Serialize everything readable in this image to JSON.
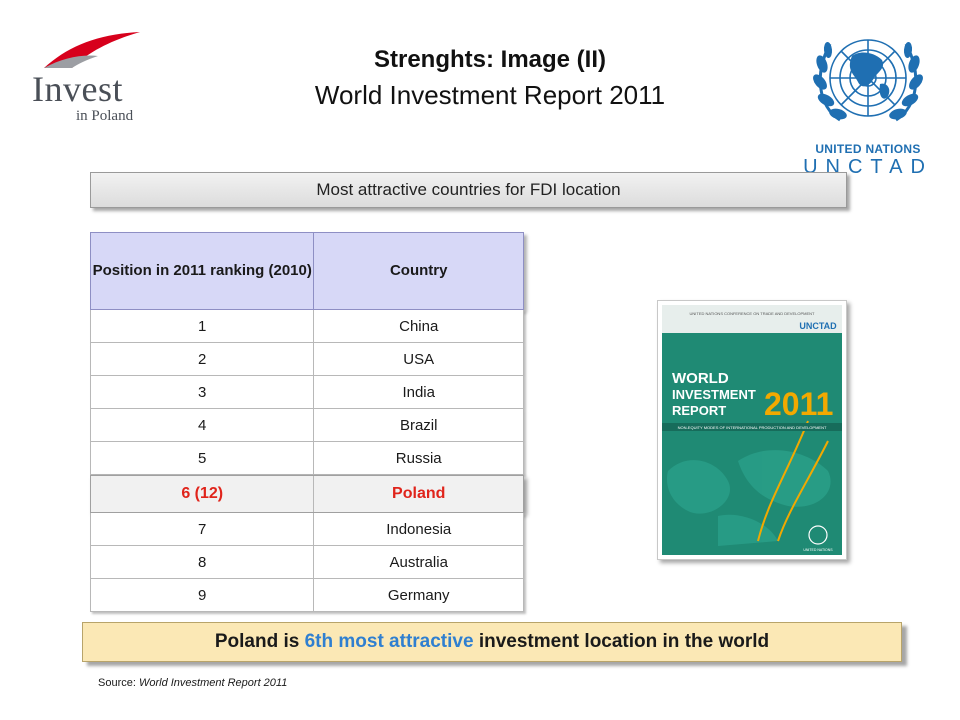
{
  "title": {
    "main": "Strenghts: Image (II)",
    "sub": "World Investment Report 2011"
  },
  "logos": {
    "invest_in_poland": {
      "word1": "Invest",
      "word2": "in Poland",
      "icon": "invest-in-poland-logo",
      "colors": [
        "#d7001c",
        "#4a4f57"
      ]
    },
    "unctad": {
      "line1": "UNITED NATIONS",
      "line2": "UNCTAD",
      "icon": "un-emblem",
      "color": "#1f6fb2"
    }
  },
  "banner": {
    "text": "Most attractive countries for FDI location"
  },
  "table": {
    "headers": [
      "Position in 2011 ranking (2010)",
      "Country"
    ],
    "rows": [
      {
        "position": "1",
        "country": "China"
      },
      {
        "position": "2",
        "country": "USA"
      },
      {
        "position": "3",
        "country": "India"
      },
      {
        "position": "4",
        "country": "Brazil"
      },
      {
        "position": "5",
        "country": "Russia"
      },
      {
        "position": "6 (12)",
        "country": "Poland"
      },
      {
        "position": "7",
        "country": "Indonesia"
      },
      {
        "position": "8",
        "country": "Australia"
      },
      {
        "position": "9",
        "country": "Germany"
      }
    ],
    "highlight_row_index": 5,
    "highlight_color": "#e0241b",
    "header_color": "#d7d8f7"
  },
  "report_cover": {
    "top_line": "UNITED NATIONS CONFERENCE ON TRADE AND DEVELOPMENT",
    "brand": "UNCTAD",
    "line1": "WORLD",
    "line2": "INVESTMENT",
    "line3": "REPORT",
    "year": "2011",
    "subtitle": "NON-EQUITY MODES OF INTERNATIONAL PRODUCTION AND DEVELOPMENT",
    "footer": "UNITED NATIONS",
    "cover_color": "#1f8a74",
    "accent_color": "#f2a900"
  },
  "conclusion": {
    "before": "Poland is ",
    "accent": "6th most attractive",
    "after": " investment location in the world",
    "accent_color": "#2f7fd0"
  },
  "source": {
    "label": "Source: ",
    "text": "World Investment Report 2011"
  }
}
